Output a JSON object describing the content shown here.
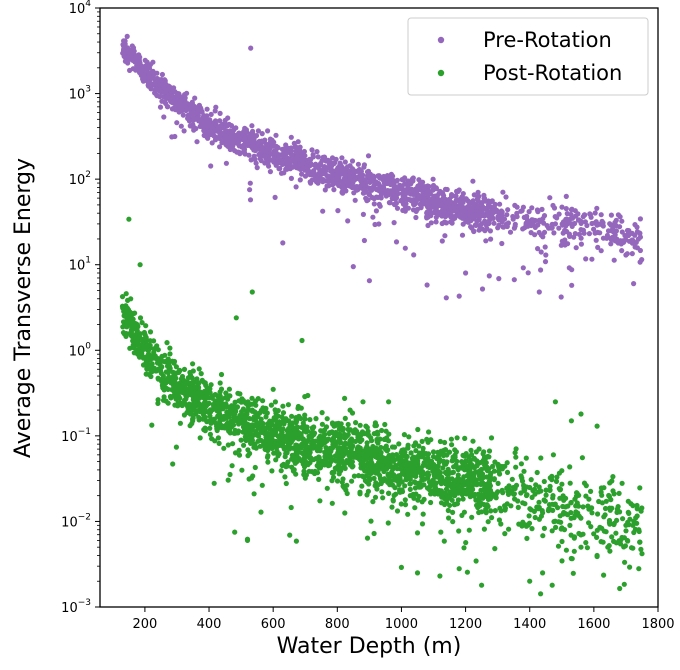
{
  "chart_data": {
    "type": "scatter",
    "title": "",
    "xlabel": "Water Depth (m)",
    "ylabel": "Average Transverse Energy",
    "xlim": [
      60,
      1800
    ],
    "ylim": [
      0.001,
      10000
    ],
    "yscale": "log",
    "x_ticks": [
      200,
      400,
      600,
      800,
      1000,
      1200,
      1400,
      1600,
      1800
    ],
    "x_tick_labels": [
      "200",
      "400",
      "600",
      "800",
      "1000",
      "1200",
      "1400",
      "1600",
      "1800"
    ],
    "y_ticks": [
      0.001,
      0.01,
      0.1,
      1,
      10,
      100,
      1000,
      10000
    ],
    "y_tick_bases": [
      "10",
      "10",
      "10",
      "10",
      "10",
      "10",
      "10",
      "10"
    ],
    "y_tick_exponents": [
      "−3",
      "−2",
      "−1",
      "0",
      "1",
      "2",
      "3",
      "4"
    ],
    "legend_position": "top-right",
    "series": [
      {
        "name": "Pre-Rotation",
        "color": "#9467bd",
        "trend": [
          [
            110,
            4500
          ],
          [
            150,
            3000
          ],
          [
            200,
            1800
          ],
          [
            300,
            800
          ],
          [
            400,
            420
          ],
          [
            500,
            280
          ],
          [
            600,
            200
          ],
          [
            700,
            150
          ],
          [
            800,
            115
          ],
          [
            900,
            90
          ],
          [
            1000,
            70
          ],
          [
            1100,
            55
          ],
          [
            1200,
            44
          ],
          [
            1300,
            38
          ],
          [
            1400,
            34
          ],
          [
            1500,
            30
          ],
          [
            1600,
            27
          ],
          [
            1700,
            24
          ],
          [
            1750,
            22
          ]
        ],
        "outliers": [
          [
            530,
            3400
          ],
          [
            630,
            18
          ],
          [
            1250,
            50
          ],
          [
            850,
            9.5
          ],
          [
            900,
            6.5
          ],
          [
            1080,
            5.8
          ],
          [
            1140,
            4.1
          ],
          [
            1180,
            4.3
          ],
          [
            1200,
            8
          ],
          [
            1430,
            4.8
          ],
          [
            1380,
            9.2
          ],
          [
            1450,
            13
          ],
          [
            1510,
            17
          ],
          [
            1560,
            32
          ],
          [
            1610,
            29
          ],
          [
            1660,
            25
          ],
          [
            1690,
            19
          ],
          [
            1700,
            13
          ],
          [
            1720,
            13.5
          ],
          [
            1745,
            21
          ],
          [
            1330,
            28
          ],
          [
            1480,
            30
          ],
          [
            1530,
            44
          ]
        ]
      },
      {
        "name": "Post-Rotation",
        "color": "#2ca02c",
        "trend": [
          [
            110,
            5
          ],
          [
            150,
            2.2
          ],
          [
            200,
            1.0
          ],
          [
            250,
            0.6
          ],
          [
            300,
            0.4
          ],
          [
            400,
            0.22
          ],
          [
            500,
            0.15
          ],
          [
            600,
            0.11
          ],
          [
            700,
            0.085
          ],
          [
            800,
            0.07
          ],
          [
            900,
            0.055
          ],
          [
            1000,
            0.045
          ],
          [
            1100,
            0.037
          ],
          [
            1200,
            0.032
          ],
          [
            1300,
            0.028
          ],
          [
            1400,
            0.022
          ],
          [
            1500,
            0.018
          ],
          [
            1600,
            0.014
          ],
          [
            1700,
            0.011
          ],
          [
            1750,
            0.01
          ]
        ],
        "outliers": [
          [
            150,
            34
          ],
          [
            185,
            10
          ],
          [
            535,
            4.8
          ],
          [
            485,
            2.4
          ],
          [
            600,
            0.35
          ],
          [
            690,
            1.3
          ],
          [
            790,
            0.13
          ],
          [
            825,
            0.16
          ],
          [
            840,
            0.2
          ],
          [
            880,
            0.25
          ],
          [
            960,
            0.25
          ],
          [
            1480,
            0.25
          ],
          [
            1560,
            0.18
          ],
          [
            1610,
            0.13
          ],
          [
            1530,
            0.15
          ],
          [
            1740,
            0.008
          ],
          [
            1700,
            0.009
          ],
          [
            1750,
            0.0042
          ],
          [
            1740,
            0.0028
          ],
          [
            1470,
            0.0018
          ],
          [
            1440,
            0.0025
          ],
          [
            1400,
            0.002
          ],
          [
            1250,
            0.0018
          ],
          [
            1180,
            0.0028
          ],
          [
            1120,
            0.0023
          ],
          [
            1050,
            0.0025
          ],
          [
            1000,
            0.0029
          ],
          [
            520,
            0.006
          ],
          [
            520,
            0.0062
          ],
          [
            480,
            0.0075
          ],
          [
            1560,
            0.005
          ],
          [
            1610,
            0.004
          ],
          [
            1650,
            0.0045
          ]
        ]
      }
    ]
  }
}
